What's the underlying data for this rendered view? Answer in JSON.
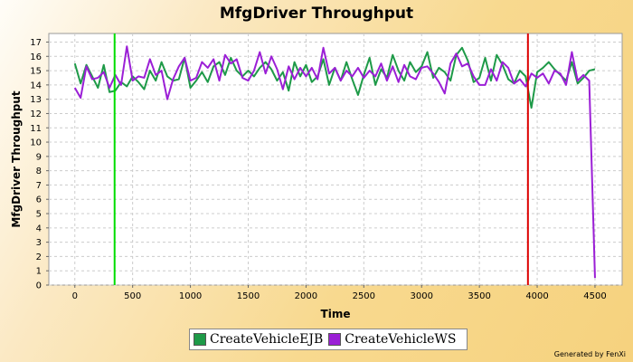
{
  "chart_data": {
    "type": "line",
    "title": "MfgDriver Throughput",
    "xlabel": "Time",
    "ylabel": "MfgDriver Throughput",
    "xlim": [
      -225,
      4735
    ],
    "ylim": [
      0,
      17.6
    ],
    "xticks": [
      0,
      500,
      1000,
      1500,
      2000,
      2500,
      3000,
      3500,
      4000,
      4500
    ],
    "yticks": [
      0,
      1,
      2,
      3,
      4,
      5,
      6,
      7,
      8,
      9,
      10,
      11,
      12,
      13,
      14,
      15,
      16,
      17
    ],
    "grid": true,
    "legend_position": "bottom",
    "x_step": 50,
    "series": [
      {
        "name": "CreateVehicleEJB",
        "color": "#1e9a48",
        "values": [
          15.5,
          14.1,
          15.4,
          14.6,
          13.8,
          15.4,
          13.5,
          13.6,
          14.2,
          13.9,
          14.6,
          14.2,
          13.7,
          15.0,
          14.3,
          15.6,
          14.6,
          14.3,
          14.4,
          15.9,
          13.8,
          14.3,
          14.9,
          14.2,
          15.3,
          15.6,
          14.7,
          15.9,
          15.0,
          14.6,
          15.0,
          14.6,
          15.2,
          15.6,
          15.1,
          14.3,
          14.9,
          13.6,
          15.6,
          14.6,
          15.4,
          14.2,
          14.6,
          15.8,
          14.0,
          15.2,
          14.3,
          15.6,
          14.4,
          13.3,
          14.7,
          15.9,
          14.0,
          15.1,
          14.5,
          16.1,
          15.0,
          14.3,
          15.6,
          14.9,
          15.3,
          16.3,
          14.5,
          15.2,
          14.9,
          14.3,
          16.1,
          16.6,
          15.7,
          14.2,
          14.5,
          15.9,
          14.3,
          16.1,
          15.4,
          14.4,
          14.1,
          15.0,
          14.6,
          12.4,
          14.9,
          15.2,
          15.6,
          15.1,
          14.7,
          14.3,
          15.6,
          14.1,
          14.5,
          15.0,
          15.1
        ]
      },
      {
        "name": "CreateVehicleWS",
        "color": "#9b1fd6",
        "values": [
          13.8,
          13.1,
          15.3,
          14.4,
          14.5,
          14.9,
          13.8,
          14.7,
          14.0,
          16.7,
          14.3,
          14.6,
          14.5,
          15.8,
          14.7,
          15.0,
          13.0,
          14.4,
          15.3,
          15.9,
          14.3,
          14.5,
          15.6,
          15.2,
          15.8,
          14.3,
          16.1,
          15.5,
          15.8,
          14.5,
          14.3,
          15.0,
          16.3,
          14.8,
          16.0,
          15.1,
          13.7,
          15.3,
          14.4,
          15.2,
          14.6,
          15.2,
          14.4,
          16.6,
          14.8,
          15.2,
          14.3,
          15.0,
          14.6,
          15.2,
          14.5,
          15.0,
          14.6,
          15.5,
          14.3,
          15.3,
          14.2,
          15.4,
          14.6,
          14.4,
          15.2,
          15.3,
          14.8,
          14.2,
          13.4,
          15.5,
          16.2,
          15.3,
          15.5,
          14.6,
          14.0,
          14.0,
          15.1,
          14.3,
          15.6,
          15.2,
          14.1,
          14.4,
          13.9,
          14.8,
          14.5,
          14.8,
          14.1,
          15.0,
          14.8,
          14.0,
          16.3,
          14.3,
          14.7,
          14.3,
          0.5
        ]
      }
    ],
    "markers": [
      {
        "x": 344,
        "color": "#00dd00"
      },
      {
        "x": 3920,
        "color": "#dd0000"
      }
    ]
  },
  "footer": "Generated by FenXi"
}
